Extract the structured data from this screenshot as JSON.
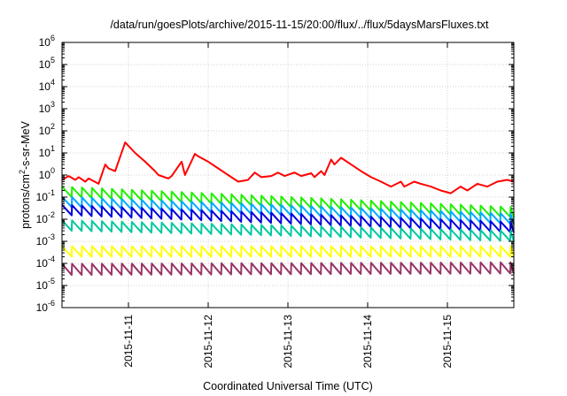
{
  "chart_data": {
    "type": "line",
    "title": "/data/run/goesPlots/archive/2015-11-15/20:00/flux/../flux/5daysMarsFluxes.txt",
    "xlabel": "Coordinated Universal Time (UTC)",
    "ylabel": {
      "prefix": "protons/cm",
      "sup": "2",
      "suffix": "-s-sr-MeV"
    },
    "y_scale": "log",
    "ylim": [
      1e-06,
      1000000.0
    ],
    "y_ticks": [
      {
        "base": "10",
        "exp": "-6"
      },
      {
        "base": "10",
        "exp": "-5"
      },
      {
        "base": "10",
        "exp": "-4"
      },
      {
        "base": "10",
        "exp": "-3"
      },
      {
        "base": "10",
        "exp": "-2"
      },
      {
        "base": "10",
        "exp": "-1"
      },
      {
        "base": "10",
        "exp": "0"
      },
      {
        "base": "10",
        "exp": "1"
      },
      {
        "base": "10",
        "exp": "2"
      },
      {
        "base": "10",
        "exp": "3"
      },
      {
        "base": "10",
        "exp": "4"
      },
      {
        "base": "10",
        "exp": "5"
      },
      {
        "base": "10",
        "exp": "6"
      }
    ],
    "xlim": [
      "2015-11-10 04:00",
      "2015-11-15 20:00"
    ],
    "x_ticks": [
      "2015-11-11",
      "2015-11-12",
      "2015-11-13",
      "2015-11-14",
      "2015-11-15"
    ],
    "grid": true,
    "series": [
      {
        "color": "#ff0000",
        "x": [
          "2015-11-10 04:00",
          "2015-11-10 06:00",
          "2015-11-10 08:00",
          "2015-11-10 09:00",
          "2015-11-10 11:00",
          "2015-11-10 12:00",
          "2015-11-10 15:00",
          "2015-11-10 17:00",
          "2015-11-10 18:00",
          "2015-11-10 20:00",
          "2015-11-10 23:00",
          "2015-11-11 02:00",
          "2015-11-11 05:00",
          "2015-11-11 08:00",
          "2015-11-11 09:00",
          "2015-11-11 12:00",
          "2015-11-11 13:00",
          "2015-11-11 16:00",
          "2015-11-11 17:00",
          "2015-11-11 20:00",
          "2015-11-11 21:00",
          "2015-11-12 00:00",
          "2015-11-12 03:00",
          "2015-11-12 06:00",
          "2015-11-12 09:00",
          "2015-11-12 12:00",
          "2015-11-12 14:00",
          "2015-11-12 16:00",
          "2015-11-12 19:00",
          "2015-11-12 21:00",
          "2015-11-12 23:00",
          "2015-11-13 02:00",
          "2015-11-13 04:00",
          "2015-11-13 07:00",
          "2015-11-13 08:00",
          "2015-11-13 10:00",
          "2015-11-13 11:00",
          "2015-11-13 13:00",
          "2015-11-13 14:00",
          "2015-11-13 16:00",
          "2015-11-13 19:00",
          "2015-11-13 22:00",
          "2015-11-14 01:00",
          "2015-11-14 04:00",
          "2015-11-14 07:00",
          "2015-11-14 10:00",
          "2015-11-14 11:00",
          "2015-11-14 14:00",
          "2015-11-14 16:00",
          "2015-11-14 19:00",
          "2015-11-14 22:00",
          "2015-11-15 01:00",
          "2015-11-15 04:00",
          "2015-11-15 06:00",
          "2015-11-15 09:00",
          "2015-11-15 12:00",
          "2015-11-15 15:00",
          "2015-11-15 18:00",
          "2015-11-15 20:00"
        ],
        "y": [
          0.6,
          0.9,
          0.6,
          0.8,
          0.5,
          0.7,
          0.4,
          3.0,
          2.0,
          1.5,
          30.0,
          10.0,
          4.0,
          1.5,
          1.0,
          0.7,
          0.9,
          4.0,
          1.0,
          9.0,
          7.0,
          4.0,
          2.0,
          1.0,
          0.5,
          0.6,
          1.3,
          0.8,
          0.9,
          1.3,
          0.9,
          1.3,
          0.9,
          1.2,
          0.8,
          1.5,
          1.0,
          5.0,
          3.0,
          6.0,
          3.0,
          1.5,
          0.8,
          0.5,
          0.3,
          0.5,
          0.3,
          0.5,
          0.4,
          0.3,
          0.2,
          0.15,
          0.3,
          0.2,
          0.4,
          0.3,
          0.5,
          0.6,
          0.5
        ]
      },
      {
        "color": "#22ee00",
        "base_start": 0.1,
        "base_end": 0.012,
        "amp": 3.0
      },
      {
        "color": "#00aaff",
        "base_start": 0.035,
        "base_end": 0.006,
        "amp": 3.0
      },
      {
        "color": "#0000dd",
        "base_start": 0.015,
        "base_end": 0.0025,
        "amp": 3.0
      },
      {
        "color": "#00c8a0",
        "base_start": 0.003,
        "base_end": 0.001,
        "amp": 3.0
      },
      {
        "color": "#ffff00",
        "base_start": 0.0002,
        "base_end": 0.0002,
        "amp": 3.0
      },
      {
        "color": "#993366",
        "base_start": 3e-05,
        "base_end": 3.5e-05,
        "amp": 3.2
      }
    ]
  }
}
